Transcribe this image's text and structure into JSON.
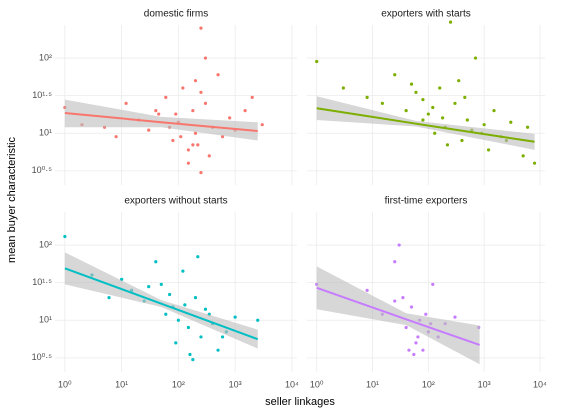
{
  "chart_data": {
    "type": "scatter",
    "x_label": "seller linkages",
    "y_label": "mean buyer characteristic",
    "log_x": true,
    "log_y": true,
    "grid": true,
    "xlim": [
      0.67,
      12300
    ],
    "ylim": [
      2.05,
      275
    ],
    "xticks": [
      {
        "value": 1,
        "label": "10⁰"
      },
      {
        "value": 10,
        "label": "10¹"
      },
      {
        "value": 100,
        "label": "10²"
      },
      {
        "value": 1000,
        "label": "10³"
      },
      {
        "value": 10000,
        "label": "10⁴"
      }
    ],
    "yticks": [
      {
        "value": 3.162,
        "label": "10⁰·⁵"
      },
      {
        "value": 10,
        "label": "10¹"
      },
      {
        "value": 31.62,
        "label": "10¹·⁵"
      },
      {
        "value": 100,
        "label": "10²"
      }
    ],
    "band_color": "#bdbdbd",
    "facets": [
      {
        "title": "domestic firms",
        "color": "#F8766D",
        "x": [
          1,
          2,
          5,
          8,
          12,
          20,
          30,
          45,
          60,
          80,
          100,
          120,
          150,
          180,
          200,
          220,
          250,
          300,
          350,
          400,
          500,
          600,
          800,
          1000,
          1500,
          2000,
          3000,
          150,
          200,
          250,
          90,
          110,
          300,
          70,
          40,
          250,
          180
        ],
        "y": [
          22,
          13,
          12,
          9,
          25,
          15,
          11,
          18,
          30,
          8,
          14,
          40,
          6,
          20,
          10,
          7,
          250,
          25,
          5,
          12,
          60,
          9,
          16,
          11,
          20,
          30,
          13,
          4,
          50,
          3,
          18,
          9,
          100,
          12,
          20,
          35,
          7
        ],
        "fit": {
          "x": [
            1,
            50,
            2500
          ],
          "y": [
            18.6,
            14,
            10.7
          ],
          "lower": [
            12,
            12,
            8
          ],
          "upper": [
            28,
            16.5,
            14
          ]
        }
      },
      {
        "title": "exporters with starts",
        "color": "#7CAE00",
        "x": [
          1,
          3,
          8,
          15,
          25,
          40,
          60,
          80,
          100,
          130,
          160,
          200,
          250,
          300,
          400,
          500,
          700,
          900,
          1200,
          1500,
          2000,
          3000,
          5000,
          8000,
          120,
          220,
          350,
          600,
          1000,
          450,
          180,
          2500,
          6000,
          80,
          50
        ],
        "y": [
          90,
          40,
          30,
          25,
          60,
          20,
          35,
          15,
          18,
          10,
          40,
          12,
          300,
          25,
          8,
          15,
          100,
          10,
          6,
          20,
          9,
          14,
          5,
          4,
          22,
          7,
          50,
          11,
          13,
          30,
          16,
          8,
          12,
          28,
          45
        ],
        "fit": {
          "x": [
            1,
            60,
            8000
          ],
          "y": [
            21.5,
            13.4,
            7.7
          ],
          "lower": [
            15,
            12.3,
            6
          ],
          "upper": [
            31,
            14.6,
            9.8
          ]
        }
      },
      {
        "title": "exporters without starts",
        "color": "#00BFC4",
        "x": [
          1,
          3,
          6,
          10,
          15,
          25,
          40,
          60,
          80,
          100,
          120,
          150,
          180,
          200,
          250,
          300,
          400,
          500,
          700,
          1000,
          2500,
          50,
          90,
          130,
          220,
          350,
          70,
          160,
          30,
          600
        ],
        "y": [
          130,
          40,
          20,
          35,
          25,
          18,
          60,
          12,
          15,
          10,
          45,
          8,
          3,
          20,
          6,
          14,
          9,
          4,
          7,
          11,
          10,
          30,
          5,
          16,
          70,
          12,
          22,
          3.5,
          28,
          6
        ],
        "fit": {
          "x": [
            1,
            50,
            2500
          ],
          "y": [
            49,
            16.6,
            5.6
          ],
          "lower": [
            30,
            15,
            4.2
          ],
          "upper": [
            80,
            18.5,
            7.5
          ]
        }
      },
      {
        "title": "first-time exporters",
        "color": "#C77CFF",
        "x": [
          1,
          8,
          15,
          25,
          30,
          35,
          40,
          50,
          60,
          70,
          80,
          100,
          120,
          150,
          200,
          300,
          800,
          45,
          55,
          90,
          25,
          65,
          110
        ],
        "y": [
          30,
          25,
          12,
          60,
          100,
          20,
          8,
          15,
          5,
          10,
          4,
          7,
          30,
          6,
          9,
          11,
          8,
          4,
          3.5,
          12,
          18,
          6,
          9
        ],
        "fit": {
          "x": [
            1,
            40,
            830
          ],
          "y": [
            27,
            10.3,
            4.7
          ],
          "lower": [
            14,
            8.6,
            2.6
          ],
          "upper": [
            52,
            12.4,
            8.5
          ]
        }
      }
    ]
  }
}
